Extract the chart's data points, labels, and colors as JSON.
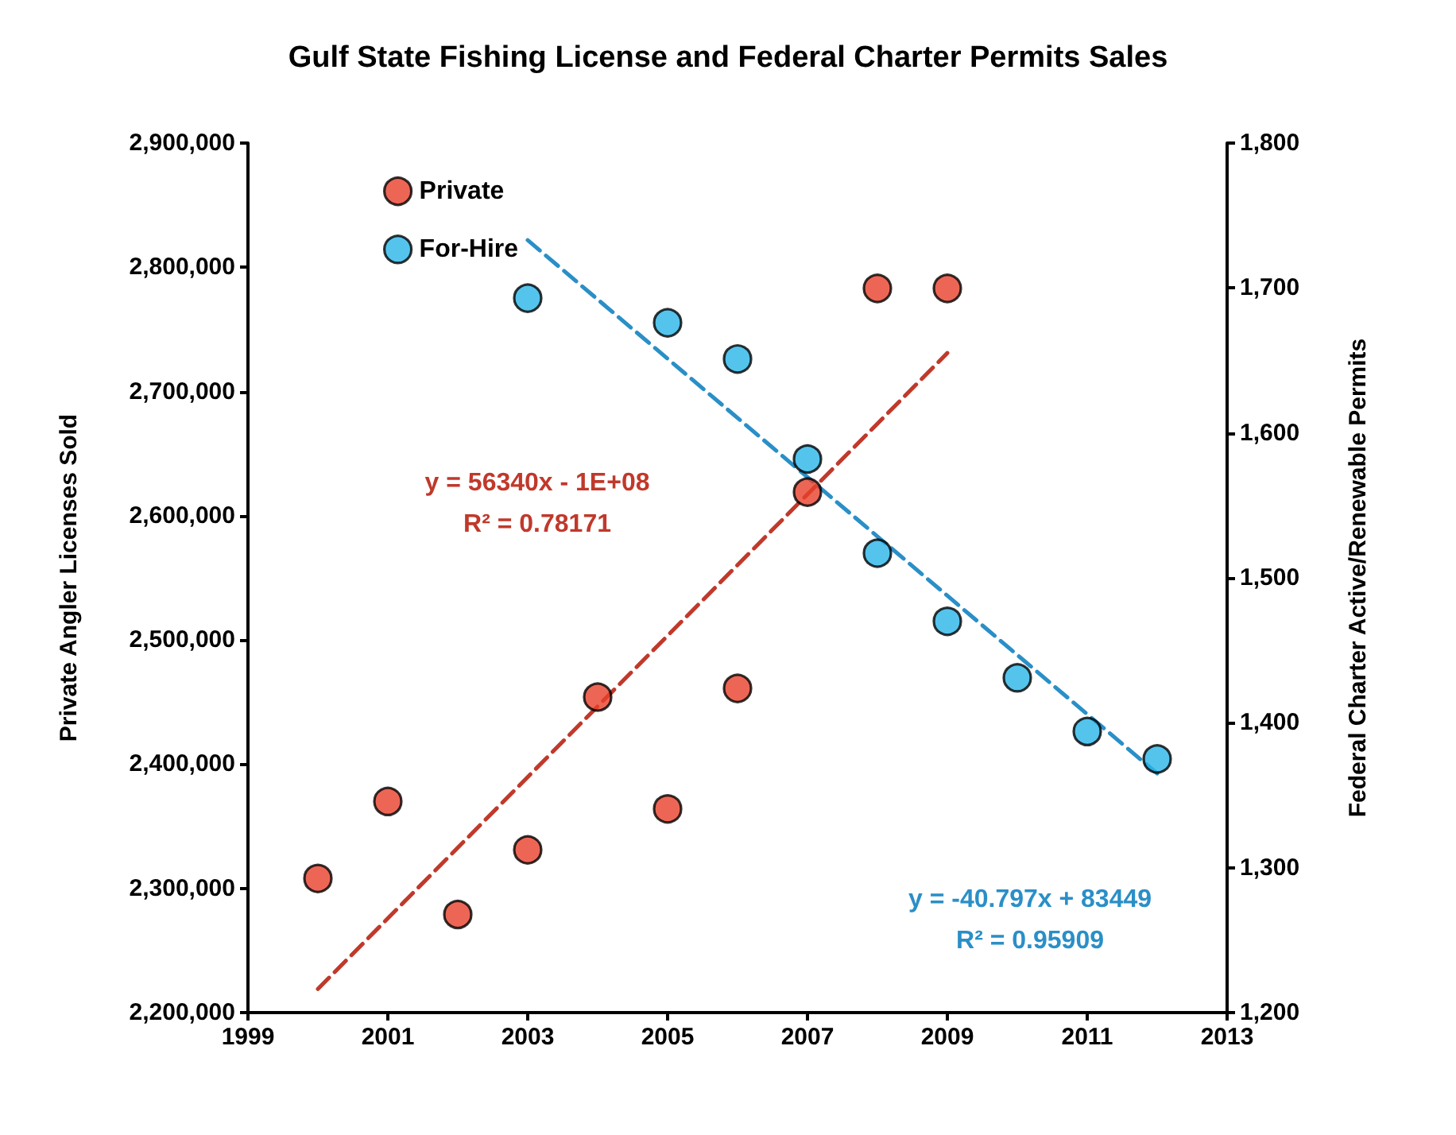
{
  "chart_data": {
    "type": "scatter",
    "title": "Gulf State Fishing License and Federal Charter Permits Sales",
    "ylabel": "Private Angler Licenses Sold",
    "y2label": "Federal Charter Active/Renewable Permits",
    "x": [
      2000,
      2001,
      2002,
      2003,
      2004,
      2005,
      2006,
      2007,
      2008,
      2009
    ],
    "series": [
      {
        "name": "Private",
        "color": "#e8402a",
        "values": [
          2308000,
          2370000,
          2279000,
          2331000,
          2454000,
          2364000,
          2461000,
          2619000,
          2783000,
          2783000
        ]
      },
      {
        "name": "For-Hire",
        "axis": "y2",
        "color": "#29b5e8",
        "x": [
          2003,
          2005,
          2006,
          2007,
          2008,
          2009,
          2010,
          2011,
          2012
        ],
        "values": [
          1693,
          1676,
          1651,
          1582,
          1517,
          1470,
          1431,
          1394,
          1375
        ]
      },
      {
        "type": "line",
        "color": "#c0392b",
        "line_style": "dashed",
        "marker": "none",
        "x": [
          2000,
          2009
        ],
        "values": [
          2219000,
          2731000
        ]
      },
      {
        "type": "line",
        "axis": "y2",
        "color": "#2a8fc7",
        "line_style": "dashed",
        "marker": "none",
        "x": [
          2003,
          2012
        ],
        "values": [
          1733,
          1365
        ]
      }
    ],
    "annotations": [
      "y = 56340x - 1E+08",
      "R² = 0.78171",
      "y = -40.797x + 83449",
      "R² = 0.95909"
    ],
    "xlim": [
      1999,
      2013
    ],
    "xticks": [
      1999,
      2001,
      2003,
      2005,
      2007,
      2009,
      2011,
      2013
    ],
    "ylim": [
      2200000,
      2900000
    ],
    "yticks": [
      {
        "value": 2200000,
        "label": "2,200,000"
      },
      {
        "value": 2300000,
        "label": "2,300,000"
      },
      {
        "value": 2400000,
        "label": "2,400,000"
      },
      {
        "value": 2500000,
        "label": "2,500,000"
      },
      {
        "value": 2600000,
        "label": "2,600,000"
      },
      {
        "value": 2700000,
        "label": "2,700,000"
      },
      {
        "value": 2800000,
        "label": "2,800,000"
      },
      {
        "value": 2900000,
        "label": "2,900,000"
      }
    ],
    "y2lim": [
      1200,
      1800
    ],
    "y2ticks": [
      {
        "value": 1200,
        "label": "1,200"
      },
      {
        "value": 1300,
        "label": "1,300"
      },
      {
        "value": 1400,
        "label": "1,400"
      },
      {
        "value": 1500,
        "label": "1,500"
      },
      {
        "value": 1600,
        "label": "1,600"
      },
      {
        "value": 1700,
        "label": "1,700"
      },
      {
        "value": 1800,
        "label": "1,800"
      }
    ],
    "grid": false,
    "legend": "top left",
    "marker": "circle"
  }
}
